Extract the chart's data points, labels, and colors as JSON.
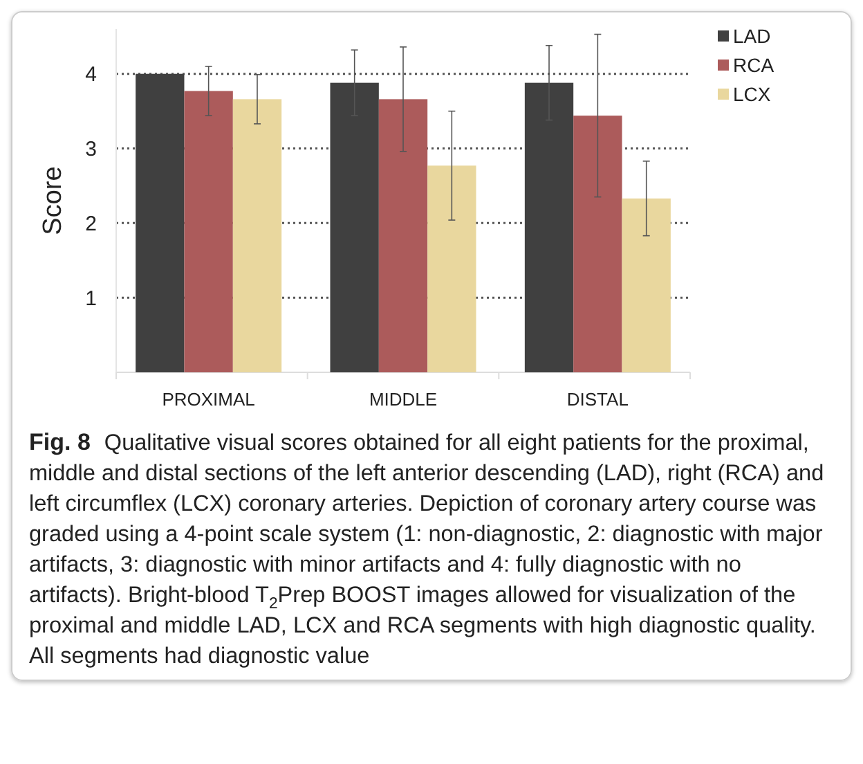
{
  "chart_data": {
    "type": "bar",
    "ylabel": "Score",
    "categories": [
      "PROXIMAL",
      "MIDDLE",
      "DISTAL"
    ],
    "series": [
      {
        "name": "LAD",
        "color": "#404040",
        "values": [
          4.0,
          3.88,
          3.88
        ],
        "errors": [
          null,
          0.44,
          0.5
        ]
      },
      {
        "name": "RCA",
        "color": "#ac5b5b",
        "values": [
          3.77,
          3.66,
          3.44
        ],
        "errors": [
          0.33,
          0.7,
          1.09
        ]
      },
      {
        "name": "LCX",
        "color": "#e9d79e",
        "values": [
          3.66,
          2.77,
          2.33
        ],
        "errors": [
          0.33,
          0.73,
          0.5
        ]
      }
    ],
    "ylim": [
      0,
      4.6
    ],
    "yticks": [
      1,
      2,
      3,
      4
    ],
    "grid": "y",
    "legend": "top right",
    "annotations": [
      "Fig. 8",
      "Qualitative visual scores obtained for all eight patients for the proximal, middle and distal sections of the left anterior descending (LAD), right (RCA) and left circumflex (LCX) coronary arteries. Depiction of coronary artery course was graded using a 4-point scale system (1: non-diagnostic, 2: diagnostic with major artifacts, 3: diagnostic with minor artifacts and 4: fully diagnostic with no artifacts). Bright-blood T$_{2}$Prep BOOST images allowed for visualization of the proximal and middle LAD, LCX and RCA segments with high diagnostic quality. All segments had diagnostic value"
    ]
  }
}
